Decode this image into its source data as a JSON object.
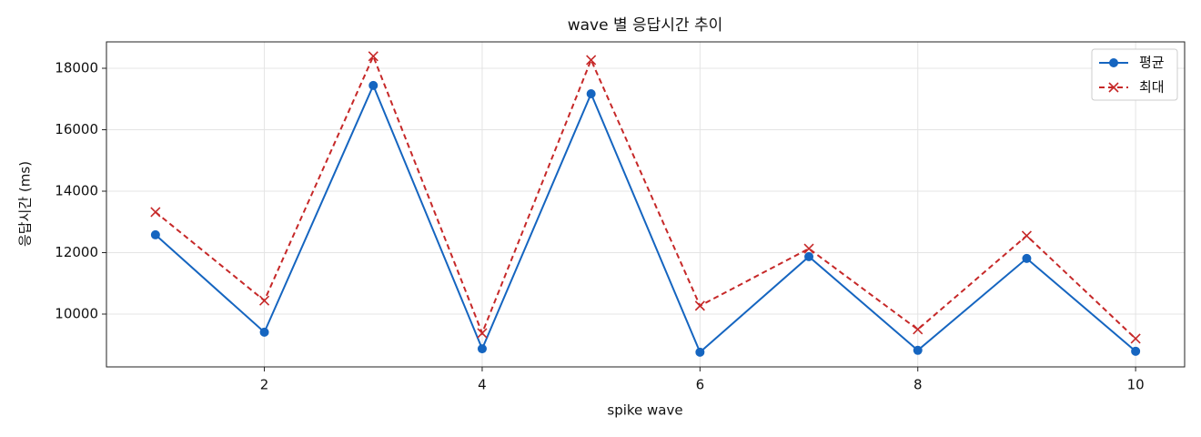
{
  "chart_data": {
    "type": "line",
    "title": "wave 별 응답시간 추이",
    "x_label": "spike wave",
    "y_label": "응답시간 (ms)",
    "x": [
      1,
      2,
      3,
      4,
      5,
      6,
      7,
      8,
      9,
      10
    ],
    "series": [
      {
        "name": "평균",
        "color": "#1565c0",
        "linestyle": "solid",
        "marker": "circle",
        "values": [
          12580,
          9410,
          17440,
          8870,
          17170,
          8760,
          11870,
          8820,
          11810,
          8790
        ]
      },
      {
        "name": "최대",
        "color": "#c62828",
        "linestyle": "dashed",
        "marker": "x",
        "values": [
          13320,
          10440,
          18390,
          9380,
          18270,
          10270,
          12130,
          9500,
          12550,
          9200
        ]
      }
    ],
    "xlim": [
      0.55,
      10.45
    ],
    "xticks": [
      2,
      4,
      6,
      8,
      10
    ],
    "ylim": [
      8281,
      18859
    ],
    "yticks": [
      10000,
      12000,
      14000,
      16000,
      18000
    ],
    "grid": true,
    "legend": "upper right"
  }
}
